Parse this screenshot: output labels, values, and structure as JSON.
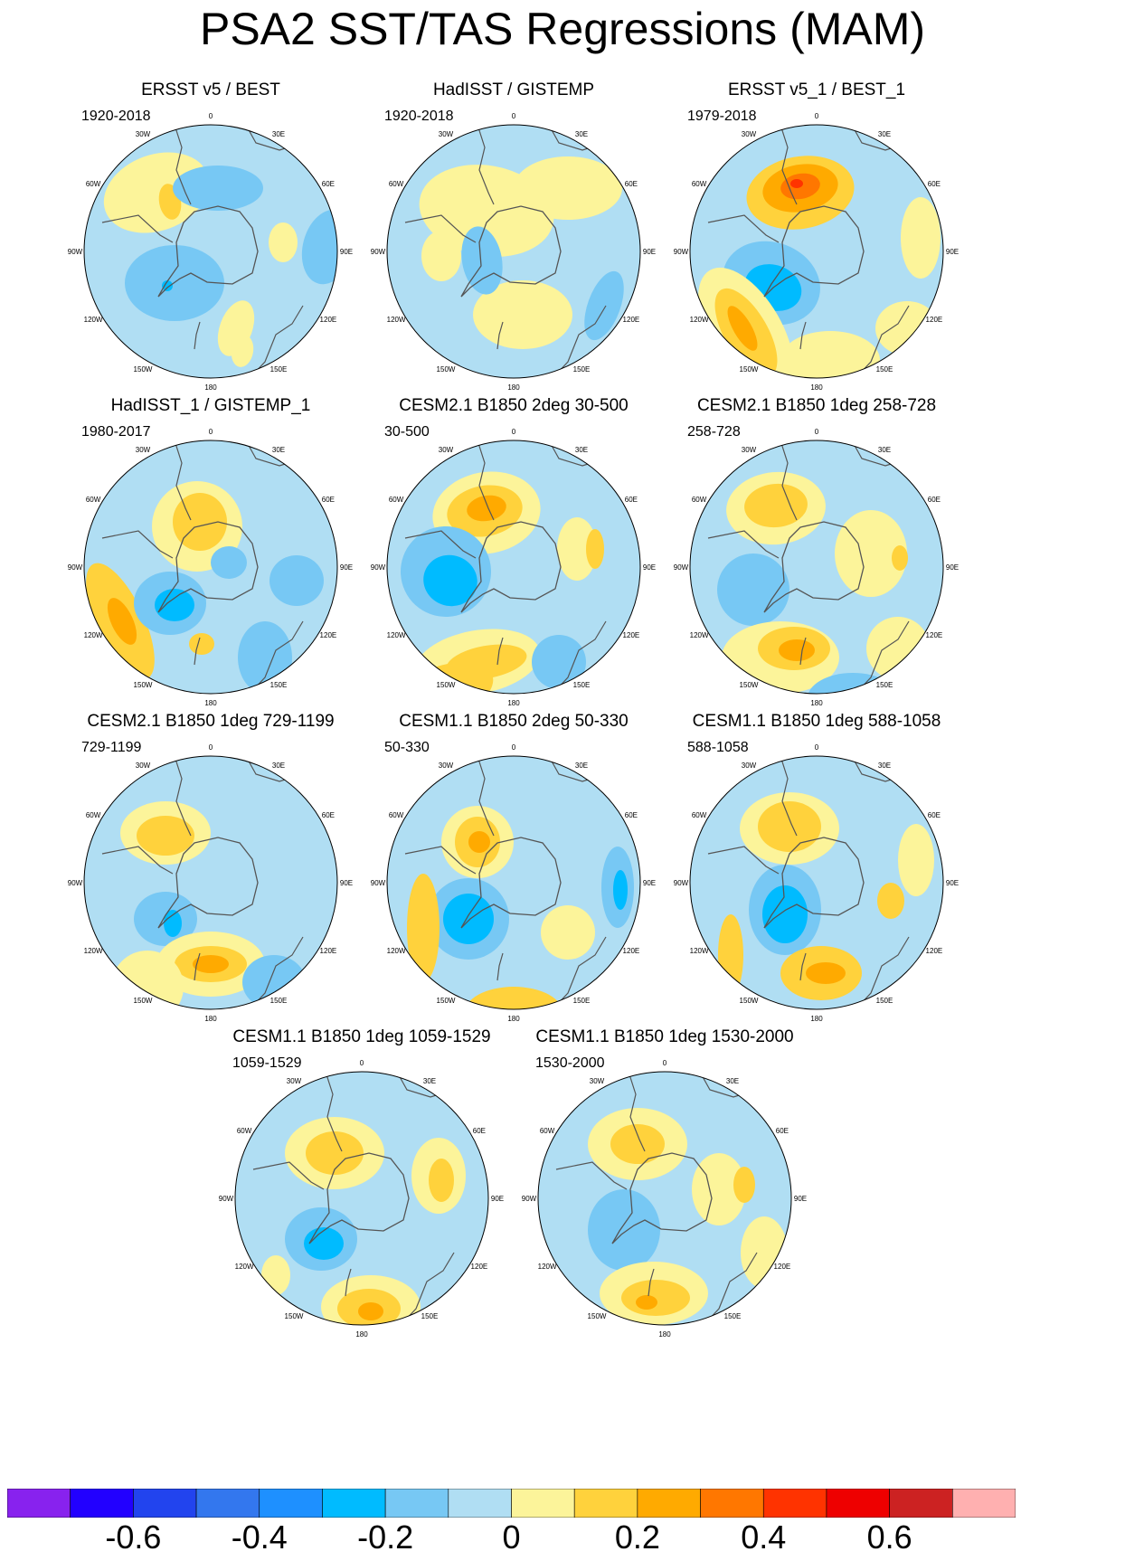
{
  "title": "PSA2 SST/TAS Regressions (MAM)",
  "longitude_labels": [
    "0",
    "30E",
    "60E",
    "90E",
    "120E",
    "150E",
    "180",
    "150W",
    "120W",
    "90W",
    "60W",
    "30W"
  ],
  "panels": [
    {
      "title": "ERSST v5 / BEST",
      "period": "1920-2018"
    },
    {
      "title": "HadISST / GISTEMP",
      "period": "1920-2018"
    },
    {
      "title": "ERSST v5_1 / BEST_1",
      "period": "1979-2018"
    },
    {
      "title": "HadISST_1 / GISTEMP_1",
      "period": "1980-2017"
    },
    {
      "title": "CESM2.1 B1850 2deg 30-500",
      "period": "30-500"
    },
    {
      "title": "CESM2.1 B1850 1deg 258-728",
      "period": "258-728"
    },
    {
      "title": "CESM2.1 B1850 1deg 729-1199",
      "period": "729-1199"
    },
    {
      "title": "CESM1.1 B1850 2deg 50-330",
      "period": "50-330"
    },
    {
      "title": "CESM1.1 B1850 1deg 588-1058",
      "period": "588-1058"
    },
    {
      "title": "CESM1.1 B1850 1deg 1059-1529",
      "period": "1059-1529"
    },
    {
      "title": "CESM1.1 B1850 1deg 1530-2000",
      "period": "1530-2000"
    }
  ],
  "colorbar": {
    "colors": [
      "#8822ee",
      "#2200ff",
      "#2244ee",
      "#3377ee",
      "#1e90ff",
      "#00bbff",
      "#77c8f4",
      "#b0def3",
      "#fcf49a",
      "#ffd23c",
      "#ffaa00",
      "#ff7700",
      "#ff3300",
      "#ee0000",
      "#cc2222",
      "#ffb0b0"
    ],
    "tick_labels": [
      "-0.6",
      "-0.4",
      "-0.2",
      "0",
      "0.2",
      "0.4",
      "0.6"
    ],
    "tick_values": [
      -0.6,
      -0.4,
      -0.2,
      0,
      0.2,
      0.4,
      0.6
    ],
    "levels": [
      -0.7,
      -0.6,
      -0.5,
      -0.4,
      -0.3,
      -0.2,
      -0.1,
      0,
      0.1,
      0.2,
      0.3,
      0.4,
      0.5,
      0.6,
      0.7
    ]
  }
}
